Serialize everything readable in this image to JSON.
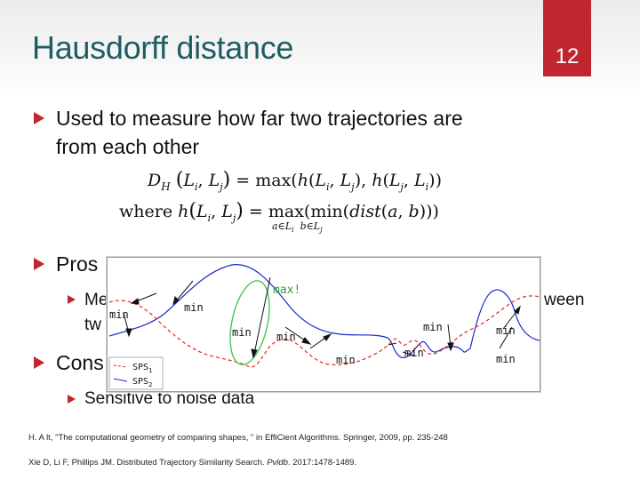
{
  "slide": {
    "title": "Hausdorff distance",
    "number": "12"
  },
  "bullets": {
    "main": "Used to measure how far two trajectories are from each other",
    "main_line1": "Used to measure how far two trajectories are",
    "main_line2": "from each other",
    "pros": "Pros",
    "pros_sub_start": "Me",
    "pros_sub_end": "ween",
    "pros_sub_line2_start": "tw",
    "cons": "Cons",
    "cons_sub": "Sensitive to noise data"
  },
  "formula": {
    "line1_lhs": "D",
    "line1_sub": "H",
    "line1_args": "(L_i, L_j) = max(h(L_i, L_j), h(L_j, L_i))",
    "line2": "where h(L_i, L_j) = max(min(dist(a, b)))",
    "line2_under": "a∈L_i  b∈L_j"
  },
  "figure": {
    "labels": {
      "max": "max!",
      "min": "min"
    },
    "legend": [
      {
        "name": "SPS",
        "sub": "1",
        "color": "#e8251f",
        "style": "dashed"
      },
      {
        "name": "SPS",
        "sub": "2",
        "color": "#1a28c8",
        "style": "solid"
      }
    ],
    "highlight_color": "#3cc24a"
  },
  "references": [
    "H. A lt, \"The computational geometry of comparing shapes, \" in EffiCient Algorithms. Springer, 2009, pp. 235-248",
    "Xie D, Li F, Phillips JM. Distributed Trajectory Similarity Search. Pvldb. 2017:1478-1489."
  ]
}
